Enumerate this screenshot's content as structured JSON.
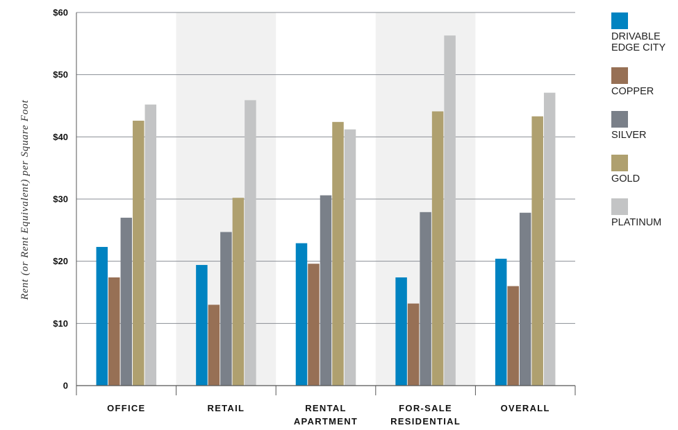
{
  "chart_data": {
    "type": "bar",
    "ylabel": "Rent (or Rent Equivalent) per Square Foot",
    "ylim": [
      0,
      60
    ],
    "yticks": [
      {
        "value": 0,
        "label": "0"
      },
      {
        "value": 10,
        "label": "$10"
      },
      {
        "value": 20,
        "label": "$20"
      },
      {
        "value": 30,
        "label": "$30"
      },
      {
        "value": 40,
        "label": "$40"
      },
      {
        "value": 50,
        "label": "$50"
      },
      {
        "value": 60,
        "label": "$60"
      }
    ],
    "grid": true,
    "legend_position": "right",
    "categories": [
      "OFFICE",
      "RETAIL",
      "RENTAL APARTMENT",
      "FOR-SALE RESIDENTIAL",
      "OVERALL"
    ],
    "category_labels": [
      [
        "OFFICE"
      ],
      [
        "RETAIL"
      ],
      [
        "RENTAL",
        "APARTMENT"
      ],
      [
        "FOR-SALE",
        "RESIDENTIAL"
      ],
      [
        "OVERALL"
      ]
    ],
    "shaded_categories": [
      1,
      3
    ],
    "series": [
      {
        "name": "DRIVABLE EDGE CITY",
        "legend_lines": [
          "DRIVABLE",
          "EDGE CITY"
        ],
        "color": "#0083C1",
        "values": [
          22.3,
          19.4,
          22.9,
          17.4,
          20.4
        ]
      },
      {
        "name": "COPPER",
        "legend_lines": [
          "COPPER"
        ],
        "color": "#977055",
        "values": [
          17.4,
          13.0,
          19.6,
          13.2,
          16.0
        ]
      },
      {
        "name": "SILVER",
        "legend_lines": [
          "SILVER"
        ],
        "color": "#7A8089",
        "values": [
          27.0,
          24.7,
          30.6,
          27.9,
          27.8
        ]
      },
      {
        "name": "GOLD",
        "legend_lines": [
          "GOLD"
        ],
        "color": "#AFA06F",
        "values": [
          42.6,
          30.2,
          42.4,
          44.1,
          43.3
        ]
      },
      {
        "name": "PLATINUM",
        "legend_lines": [
          "PLATINUM"
        ],
        "color": "#C3C4C5",
        "values": [
          45.2,
          45.9,
          41.2,
          56.3,
          47.1
        ]
      }
    ],
    "colors": {
      "grid": "#8A8E94",
      "shade": "#F1F1F1",
      "axis": "#555555"
    }
  }
}
